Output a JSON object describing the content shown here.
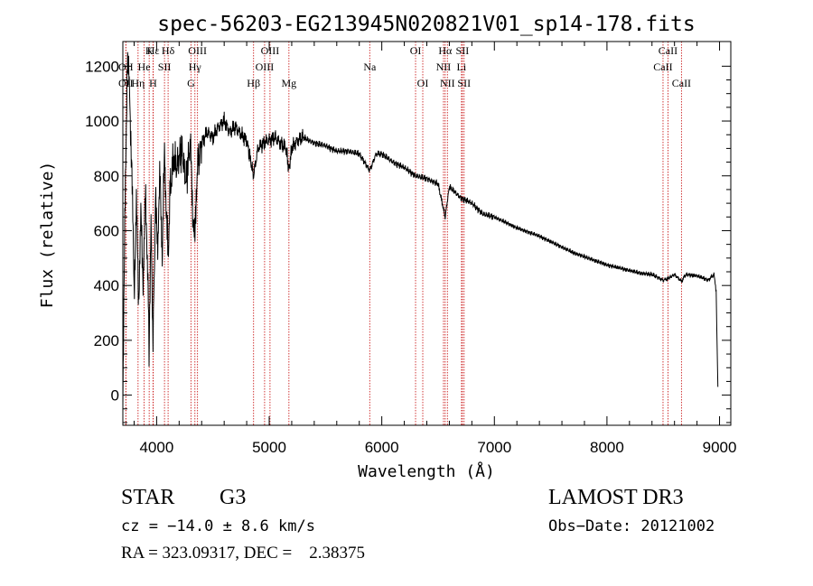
{
  "chart_data": {
    "type": "line",
    "title": "spec-56203-EG213945N020821V01_sp14-178.fits",
    "xlabel": "Wavelength (Å)",
    "ylabel": "Flux (relative)",
    "xlim": [
      3700,
      9100
    ],
    "ylim": [
      -110,
      1290
    ],
    "xticks": [
      4000,
      5000,
      6000,
      7000,
      8000,
      9000
    ],
    "yticks": [
      0,
      200,
      400,
      600,
      800,
      1000,
      1200
    ],
    "series": [
      {
        "name": "flux",
        "x": [
          3700,
          3720,
          3740,
          3760,
          3780,
          3800,
          3820,
          3840,
          3860,
          3880,
          3900,
          3920,
          3933,
          3950,
          3968,
          3990,
          4010,
          4030,
          4050,
          4070,
          4090,
          4102,
          4120,
          4150,
          4180,
          4220,
          4260,
          4300,
          4320,
          4340,
          4360,
          4400,
          4450,
          4500,
          4550,
          4600,
          4650,
          4700,
          4750,
          4800,
          4861,
          4900,
          4950,
          5000,
          5050,
          5100,
          5150,
          5175,
          5200,
          5250,
          5300,
          5400,
          5500,
          5600,
          5700,
          5800,
          5893,
          5950,
          6000,
          6100,
          6200,
          6300,
          6400,
          6500,
          6563,
          6600,
          6700,
          6800,
          6900,
          7000,
          7100,
          7200,
          7300,
          7400,
          7500,
          7600,
          7700,
          7800,
          7900,
          8000,
          8100,
          8200,
          8300,
          8400,
          8498,
          8542,
          8600,
          8662,
          8700,
          8800,
          8900,
          8950,
          8970,
          8985
        ],
        "y": [
          0,
          700,
          1240,
          1100,
          820,
          380,
          700,
          350,
          650,
          420,
          720,
          480,
          180,
          620,
          200,
          700,
          560,
          800,
          520,
          880,
          640,
          500,
          750,
          860,
          830,
          900,
          780,
          920,
          680,
          560,
          830,
          920,
          960,
          940,
          980,
          1000,
          960,
          980,
          950,
          930,
          800,
          900,
          920,
          930,
          940,
          920,
          900,
          820,
          900,
          930,
          940,
          920,
          910,
          890,
          890,
          880,
          820,
          880,
          880,
          850,
          830,
          800,
          790,
          770,
          650,
          760,
          720,
          700,
          660,
          650,
          630,
          610,
          595,
          580,
          560,
          540,
          520,
          505,
          490,
          475,
          465,
          455,
          445,
          440,
          420,
          425,
          440,
          415,
          440,
          435,
          420,
          440,
          380,
          30
        ]
      }
    ],
    "lines": [
      {
        "name": "Hε",
        "x": 3970,
        "row": 0
      },
      {
        "name": "Hδ",
        "x": 4102,
        "row": 0
      },
      {
        "name": "OIII",
        "x": 4363,
        "row": 0
      },
      {
        "name": "OIII",
        "x": 5007,
        "row": 0
      },
      {
        "name": "OI",
        "x": 6300,
        "row": 0
      },
      {
        "name": "Hα",
        "x": 6563,
        "row": 0
      },
      {
        "name": "SII",
        "x": 6716,
        "row": 0
      },
      {
        "name": "CaII",
        "x": 8542,
        "row": 0
      },
      {
        "name": "K",
        "x": 3934,
        "row": 0
      },
      {
        "name": "OII",
        "x": 3727,
        "row": 1
      },
      {
        "name": "He",
        "x": 3889,
        "row": 1
      },
      {
        "name": "SII",
        "x": 4070,
        "row": 1
      },
      {
        "name": "Hγ",
        "x": 4340,
        "row": 1
      },
      {
        "name": "OIII",
        "x": 4959,
        "row": 1
      },
      {
        "name": "Na",
        "x": 5893,
        "row": 1
      },
      {
        "name": "NII",
        "x": 6548,
        "row": 1
      },
      {
        "name": "Li",
        "x": 6708,
        "row": 1
      },
      {
        "name": "CaII",
        "x": 8498,
        "row": 1
      },
      {
        "name": "OII",
        "x": 3727,
        "row": 2
      },
      {
        "name": "Hη",
        "x": 3835,
        "row": 2
      },
      {
        "name": "H",
        "x": 3968,
        "row": 2
      },
      {
        "name": "G",
        "x": 4305,
        "row": 2
      },
      {
        "name": "Hβ",
        "x": 4861,
        "row": 2
      },
      {
        "name": "Mg",
        "x": 5175,
        "row": 2
      },
      {
        "name": "OI",
        "x": 6364,
        "row": 2
      },
      {
        "name": "NII",
        "x": 6583,
        "row": 2
      },
      {
        "name": "SII",
        "x": 6731,
        "row": 2
      },
      {
        "name": "CaII",
        "x": 8662,
        "row": 2
      }
    ]
  },
  "info": {
    "class_label": "STAR",
    "subclass_label": "G3",
    "survey": "LAMOST DR3",
    "cz": "cz = −14.0 ± 8.6 km/s",
    "obs_date": "Obs−Date: 20121002",
    "radec": "RA = 323.09317, DEC =    2.38375"
  }
}
